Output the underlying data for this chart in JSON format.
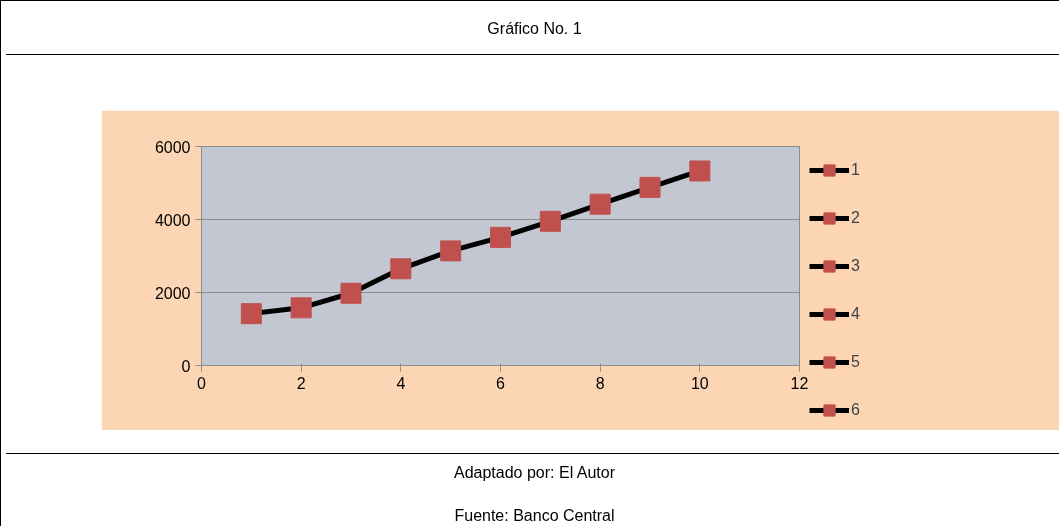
{
  "chart_data": {
    "type": "line",
    "title": "Gráfico No. 1",
    "x": [
      1,
      2,
      3,
      4,
      5,
      6,
      7,
      8,
      9,
      10
    ],
    "series": [
      {
        "name": "1",
        "color": "#c0504d",
        "values": [
          1420,
          1580,
          1980,
          2650,
          3140,
          3510,
          3950,
          4420,
          4880,
          5330
        ]
      },
      {
        "name": "2",
        "color": "#c0504d",
        "values": [
          null,
          null,
          null,
          null,
          null,
          null,
          null,
          null,
          null,
          null
        ]
      },
      {
        "name": "3",
        "color": "#c0504d",
        "values": [
          null,
          null,
          null,
          null,
          null,
          null,
          null,
          null,
          null,
          null
        ]
      },
      {
        "name": "4",
        "color": "#c0504d",
        "values": [
          null,
          null,
          null,
          null,
          null,
          null,
          null,
          null,
          null,
          null
        ]
      },
      {
        "name": "5",
        "color": "#c0504d",
        "values": [
          null,
          null,
          null,
          null,
          null,
          null,
          null,
          null,
          null,
          null
        ]
      },
      {
        "name": "6",
        "color": "#c0504d",
        "values": [
          null,
          null,
          null,
          null,
          null,
          null,
          null,
          null,
          null,
          null
        ]
      }
    ],
    "xlim": [
      0,
      12
    ],
    "xticks": [
      0,
      2,
      4,
      6,
      8,
      10,
      12
    ],
    "ylim": [
      0,
      6000
    ],
    "yticks": [
      0,
      2000,
      4000,
      6000
    ],
    "grid": "y",
    "legend": "right",
    "marker": "square",
    "line_style": "solid",
    "annotations": [
      "Adaptado por: El Autor",
      "Fuente: Banco Central"
    ]
  }
}
